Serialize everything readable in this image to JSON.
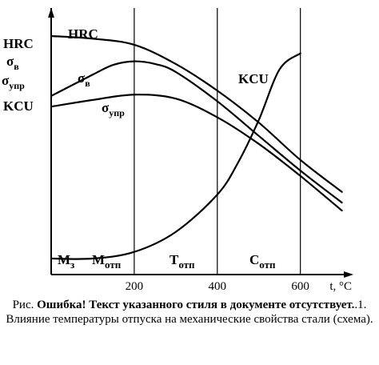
{
  "chart_data": {
    "type": "line",
    "x_unit_label": "t, °C",
    "x_ticks": [
      200,
      400,
      600
    ],
    "xlim": [
      0,
      720
    ],
    "y_axis_labels": [
      "HRC",
      "σв",
      "σупр",
      "KCU"
    ],
    "zones": [
      "Mз",
      "Mотп",
      "Tотп",
      "Cотп"
    ],
    "grid": "vertical lines at 200, 400, 600",
    "series": [
      {
        "name": "HRC",
        "x": [
          0,
          100,
          200,
          300,
          400,
          500,
          600,
          700
        ],
        "y": [
          0.895,
          0.885,
          0.862,
          0.79,
          0.69,
          0.57,
          0.43,
          0.31
        ]
      },
      {
        "name": "σв",
        "x": [
          0,
          100,
          150,
          200,
          250,
          300,
          400,
          500,
          600,
          700
        ],
        "y": [
          0.67,
          0.75,
          0.787,
          0.8,
          0.79,
          0.76,
          0.65,
          0.52,
          0.39,
          0.27
        ]
      },
      {
        "name": "σупр",
        "x": [
          0,
          100,
          200,
          300,
          400,
          500,
          600,
          700
        ],
        "y": [
          0.63,
          0.655,
          0.675,
          0.66,
          0.59,
          0.49,
          0.37,
          0.24
        ]
      },
      {
        "name": "KCU",
        "x": [
          0,
          100,
          200,
          300,
          400,
          450,
          500,
          550,
          600
        ],
        "y": [
          0.06,
          0.06,
          0.085,
          0.16,
          0.3,
          0.42,
          0.58,
          0.77,
          0.83
        ]
      }
    ]
  },
  "caption": {
    "prefix": "Рис.",
    "error_text": "Ошибка! Текст указанного стиля в документе отсутствует.",
    "suffix": ".1. Влияние температуры отпуска на механические свойства стали (схема)."
  }
}
